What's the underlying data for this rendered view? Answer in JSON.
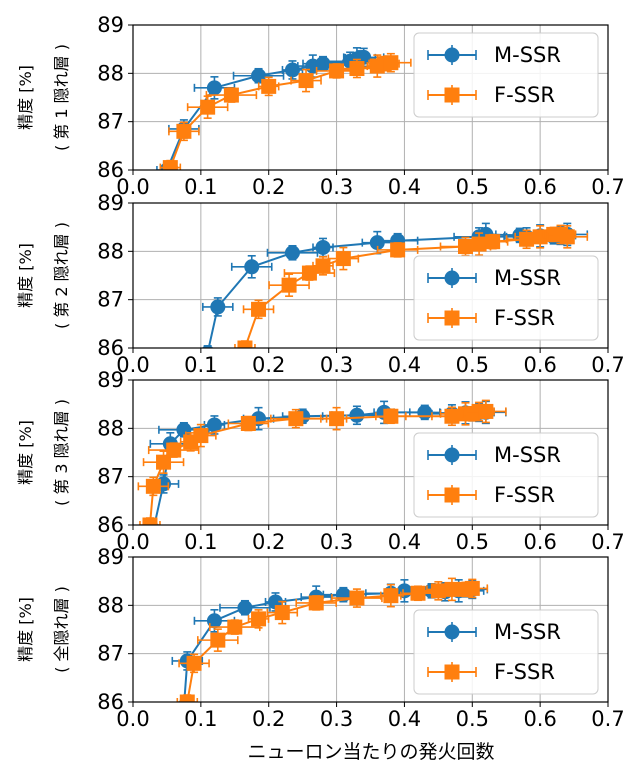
{
  "figure": {
    "xlabel": "ニューロン当たりの発火回数",
    "colors": {
      "M-SSR": "#1f77b4",
      "F-SSR": "#ff7f0e"
    }
  },
  "chart_data": [
    {
      "type": "line",
      "ylabel_line1": "精度 [%]",
      "ylabel_line2": "( 第 1 隠れ層 )",
      "xlim": [
        0,
        0.7
      ],
      "ylim": [
        86,
        89
      ],
      "xticks": [
        "0.0",
        "0.1",
        "0.2",
        "0.3",
        "0.4",
        "0.5",
        "0.6",
        "0.7"
      ],
      "yticks": [
        "86",
        "87",
        "88",
        "89"
      ],
      "grid": true,
      "legend": "upper-right",
      "series": [
        {
          "name": "M-SSR",
          "marker": "circle",
          "x": [
            0.05,
            0.075,
            0.12,
            0.185,
            0.235,
            0.265,
            0.28,
            0.32,
            0.33,
            0.335,
            0.34
          ],
          "y": [
            86.0,
            86.85,
            87.7,
            87.95,
            88.07,
            88.15,
            88.2,
            88.25,
            88.3,
            88.32,
            88.33
          ]
        },
        {
          "name": "F-SSR",
          "marker": "square",
          "x": [
            0.055,
            0.075,
            0.11,
            0.145,
            0.2,
            0.255,
            0.3,
            0.33,
            0.36,
            0.37,
            0.38
          ],
          "y": [
            86.05,
            86.8,
            87.3,
            87.55,
            87.73,
            87.85,
            88.05,
            88.1,
            88.15,
            88.2,
            88.22
          ]
        }
      ]
    },
    {
      "type": "line",
      "ylabel_line1": "精度 [%]",
      "ylabel_line2": "( 第 2 隠れ層 )",
      "xlim": [
        0,
        0.7
      ],
      "ylim": [
        86,
        89
      ],
      "xticks": [
        "0.0",
        "0.1",
        "0.2",
        "0.3",
        "0.4",
        "0.5",
        "0.6",
        "0.7"
      ],
      "yticks": [
        "86",
        "87",
        "88",
        "89"
      ],
      "grid": true,
      "legend": "lower-right",
      "series": [
        {
          "name": "M-SSR",
          "marker": "circle",
          "x": [
            0.11,
            0.125,
            0.175,
            0.235,
            0.28,
            0.36,
            0.39,
            0.51,
            0.52,
            0.57,
            0.58,
            0.6,
            0.62,
            0.63,
            0.64
          ],
          "y": [
            85.9,
            86.85,
            87.68,
            87.97,
            88.08,
            88.18,
            88.22,
            88.3,
            88.35,
            88.33,
            88.3,
            88.32,
            88.3,
            88.33,
            88.35
          ]
        },
        {
          "name": "F-SSR",
          "marker": "square",
          "x": [
            0.165,
            0.185,
            0.23,
            0.26,
            0.28,
            0.31,
            0.39,
            0.49,
            0.51,
            0.53,
            0.58,
            0.6,
            0.62,
            0.63,
            0.64
          ],
          "y": [
            86.0,
            86.8,
            87.3,
            87.55,
            87.7,
            87.85,
            88.03,
            88.1,
            88.15,
            88.2,
            88.25,
            88.3,
            88.35,
            88.35,
            88.3
          ]
        }
      ]
    },
    {
      "type": "line",
      "ylabel_line1": "精度 [%]",
      "ylabel_line2": "( 第 3 隠れ層 )",
      "xlim": [
        0,
        0.7
      ],
      "ylim": [
        86,
        89
      ],
      "xticks": [
        "0.0",
        "0.1",
        "0.2",
        "0.3",
        "0.4",
        "0.5",
        "0.6",
        "0.7"
      ],
      "yticks": [
        "86",
        "87",
        "88",
        "89"
      ],
      "grid": true,
      "legend": "lower-right",
      "series": [
        {
          "name": "M-SSR",
          "marker": "circle",
          "x": [
            0.03,
            0.045,
            0.055,
            0.075,
            0.12,
            0.185,
            0.25,
            0.33,
            0.37,
            0.43,
            0.47,
            0.49,
            0.5,
            0.51,
            0.52
          ],
          "y": [
            85.9,
            86.85,
            87.68,
            87.97,
            88.07,
            88.2,
            88.25,
            88.27,
            88.33,
            88.33,
            88.3,
            88.32,
            88.3,
            88.33,
            88.33
          ]
        },
        {
          "name": "F-SSR",
          "marker": "square",
          "x": [
            0.025,
            0.03,
            0.045,
            0.06,
            0.085,
            0.1,
            0.17,
            0.24,
            0.3,
            0.38,
            0.47,
            0.49,
            0.5,
            0.51,
            0.52
          ],
          "y": [
            86.0,
            86.8,
            87.3,
            87.55,
            87.72,
            87.85,
            88.1,
            88.2,
            88.2,
            88.25,
            88.25,
            88.3,
            88.3,
            88.35,
            88.35
          ]
        }
      ]
    },
    {
      "type": "line",
      "ylabel_line1": "精度 [%]",
      "ylabel_line2": "( 全隠れ層 )",
      "xlim": [
        0,
        0.7
      ],
      "ylim": [
        86,
        89
      ],
      "xticks": [
        "0.0",
        "0.1",
        "0.2",
        "0.3",
        "0.4",
        "0.5",
        "0.6",
        "0.7"
      ],
      "yticks": [
        "86",
        "87",
        "88",
        "89"
      ],
      "grid": true,
      "legend": "lower-right",
      "series": [
        {
          "name": "M-SSR",
          "marker": "circle",
          "x": [
            0.075,
            0.08,
            0.12,
            0.165,
            0.21,
            0.27,
            0.31,
            0.38,
            0.4,
            0.44,
            0.46,
            0.48,
            0.49,
            0.5
          ],
          "y": [
            85.9,
            86.85,
            87.68,
            87.95,
            88.07,
            88.17,
            88.22,
            88.25,
            88.3,
            88.3,
            88.28,
            88.3,
            88.32,
            88.33
          ]
        },
        {
          "name": "F-SSR",
          "marker": "square",
          "x": [
            0.08,
            0.09,
            0.125,
            0.15,
            0.185,
            0.22,
            0.27,
            0.33,
            0.38,
            0.42,
            0.45,
            0.47,
            0.49,
            0.5
          ],
          "y": [
            86.0,
            86.8,
            87.28,
            87.55,
            87.72,
            87.85,
            88.05,
            88.15,
            88.2,
            88.25,
            88.3,
            88.33,
            88.33,
            88.35
          ]
        }
      ]
    }
  ]
}
